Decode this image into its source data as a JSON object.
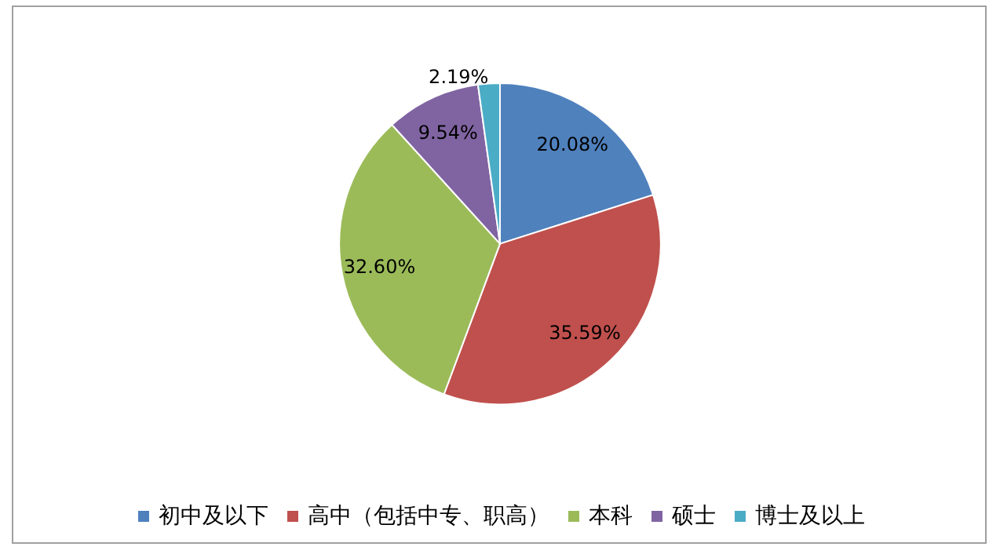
{
  "chart_data": {
    "type": "pie",
    "categories": [
      "初中及以下",
      "高中（包括中专、职高）",
      "本科",
      "硕士",
      "博士及以上"
    ],
    "values": [
      20.08,
      35.59,
      32.6,
      9.54,
      2.19
    ],
    "value_labels": [
      "20.08%",
      "35.59%",
      "32.60%",
      "9.54%",
      "2.19%"
    ],
    "colors": [
      "#4f81bd",
      "#c0504d",
      "#9bbb59",
      "#8064a2",
      "#4bacc6"
    ],
    "legend": "bottom"
  }
}
